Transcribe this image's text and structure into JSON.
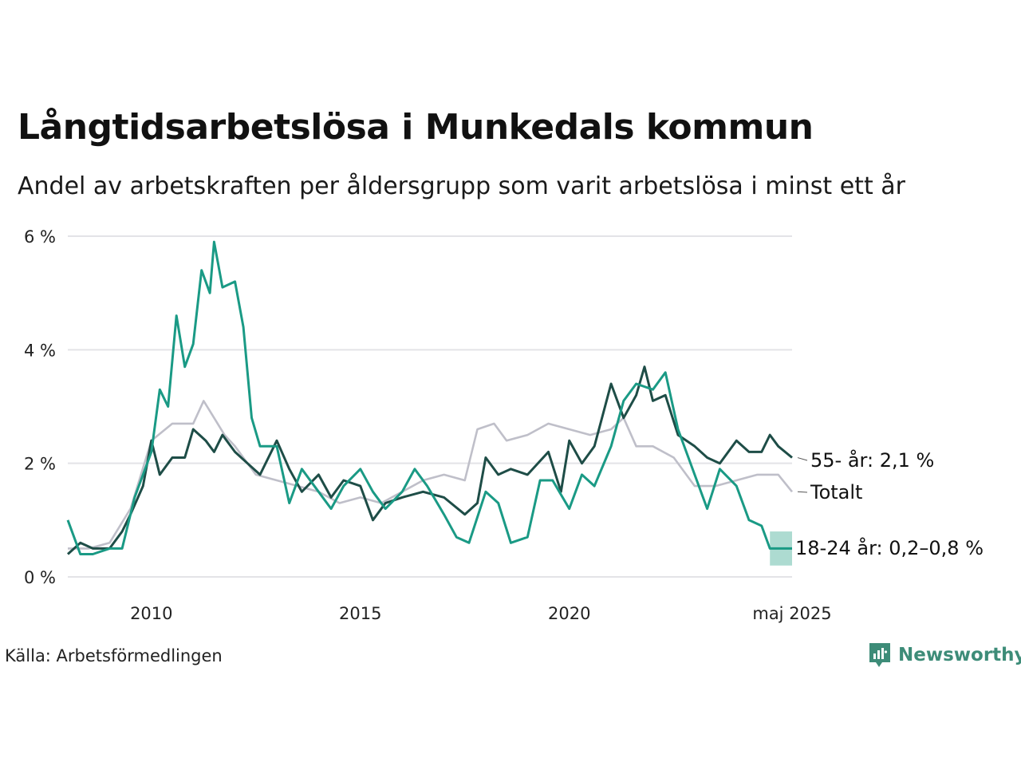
{
  "title": "Långtidsarbetslösa i Munkedals kommun",
  "subtitle": "Andel av arbetskraften per åldersgrupp som varit arbetslösa i minst ett år",
  "source": "Källa: Arbetsförmedlingen",
  "brand": "Newsworthy",
  "colors": {
    "youth": "#1a9a85",
    "older": "#1e4d47",
    "total": "#bfbfc9",
    "band": "#a9d9cf",
    "grid": "#e3e3e7",
    "brand": "#3d8c78"
  },
  "chart_data": {
    "type": "line",
    "title": "Långtidsarbetslösa i Munkedals kommun",
    "ylim": [
      0,
      6
    ],
    "yticks": [
      0,
      2,
      4,
      6
    ],
    "ytick_labels": [
      "0 %",
      "2 %",
      "4 %",
      "6 %"
    ],
    "xlim": [
      2008.0,
      2025.33
    ],
    "xticks": [
      2010,
      2015,
      2020,
      2025.33
    ],
    "xtick_labels": [
      "2010",
      "2015",
      "2020",
      "maj 2025"
    ],
    "grid": "horizontal",
    "legend": "direct labels at right end of lines",
    "series": [
      {
        "name": "Totalt",
        "key": "total",
        "end_label": "Totalt",
        "points": [
          [
            2008.0,
            0.5
          ],
          [
            2008.5,
            0.5
          ],
          [
            2009.0,
            0.6
          ],
          [
            2009.5,
            1.2
          ],
          [
            2010.0,
            2.4
          ],
          [
            2010.5,
            2.7
          ],
          [
            2011.0,
            2.7
          ],
          [
            2011.25,
            3.1
          ],
          [
            2011.5,
            2.8
          ],
          [
            2011.75,
            2.5
          ],
          [
            2012.0,
            2.3
          ],
          [
            2012.5,
            1.8
          ],
          [
            2013.0,
            1.7
          ],
          [
            2013.5,
            1.6
          ],
          [
            2014.0,
            1.5
          ],
          [
            2014.5,
            1.3
          ],
          [
            2015.0,
            1.4
          ],
          [
            2015.5,
            1.3
          ],
          [
            2016.0,
            1.5
          ],
          [
            2016.5,
            1.7
          ],
          [
            2017.0,
            1.8
          ],
          [
            2017.5,
            1.7
          ],
          [
            2017.8,
            2.6
          ],
          [
            2018.2,
            2.7
          ],
          [
            2018.5,
            2.4
          ],
          [
            2019.0,
            2.5
          ],
          [
            2019.5,
            2.7
          ],
          [
            2020.0,
            2.6
          ],
          [
            2020.5,
            2.5
          ],
          [
            2021.0,
            2.6
          ],
          [
            2021.3,
            2.8
          ],
          [
            2021.6,
            2.3
          ],
          [
            2022.0,
            2.3
          ],
          [
            2022.5,
            2.1
          ],
          [
            2023.0,
            1.6
          ],
          [
            2023.5,
            1.6
          ],
          [
            2024.0,
            1.7
          ],
          [
            2024.5,
            1.8
          ],
          [
            2025.0,
            1.8
          ],
          [
            2025.33,
            1.5
          ]
        ]
      },
      {
        "name": "55- år",
        "key": "older",
        "end_label": "55- år: 2,1 %",
        "points": [
          [
            2008.0,
            0.4
          ],
          [
            2008.3,
            0.6
          ],
          [
            2008.6,
            0.5
          ],
          [
            2009.0,
            0.5
          ],
          [
            2009.3,
            0.8
          ],
          [
            2009.5,
            1.1
          ],
          [
            2009.8,
            1.6
          ],
          [
            2010.0,
            2.4
          ],
          [
            2010.2,
            1.8
          ],
          [
            2010.5,
            2.1
          ],
          [
            2010.8,
            2.1
          ],
          [
            2011.0,
            2.6
          ],
          [
            2011.3,
            2.4
          ],
          [
            2011.5,
            2.2
          ],
          [
            2011.7,
            2.5
          ],
          [
            2012.0,
            2.2
          ],
          [
            2012.3,
            2.0
          ],
          [
            2012.6,
            1.8
          ],
          [
            2013.0,
            2.4
          ],
          [
            2013.3,
            1.9
          ],
          [
            2013.6,
            1.5
          ],
          [
            2014.0,
            1.8
          ],
          [
            2014.3,
            1.4
          ],
          [
            2014.6,
            1.7
          ],
          [
            2015.0,
            1.6
          ],
          [
            2015.3,
            1.0
          ],
          [
            2015.6,
            1.3
          ],
          [
            2016.0,
            1.4
          ],
          [
            2016.5,
            1.5
          ],
          [
            2017.0,
            1.4
          ],
          [
            2017.5,
            1.1
          ],
          [
            2017.8,
            1.3
          ],
          [
            2018.0,
            2.1
          ],
          [
            2018.3,
            1.8
          ],
          [
            2018.6,
            1.9
          ],
          [
            2019.0,
            1.8
          ],
          [
            2019.5,
            2.2
          ],
          [
            2019.8,
            1.5
          ],
          [
            2020.0,
            2.4
          ],
          [
            2020.3,
            2.0
          ],
          [
            2020.6,
            2.3
          ],
          [
            2021.0,
            3.4
          ],
          [
            2021.3,
            2.8
          ],
          [
            2021.6,
            3.2
          ],
          [
            2021.8,
            3.7
          ],
          [
            2022.0,
            3.1
          ],
          [
            2022.3,
            3.2
          ],
          [
            2022.6,
            2.5
          ],
          [
            2023.0,
            2.3
          ],
          [
            2023.3,
            2.1
          ],
          [
            2023.6,
            2.0
          ],
          [
            2024.0,
            2.4
          ],
          [
            2024.3,
            2.2
          ],
          [
            2024.6,
            2.2
          ],
          [
            2024.8,
            2.5
          ],
          [
            2025.0,
            2.3
          ],
          [
            2025.33,
            2.1
          ]
        ]
      },
      {
        "name": "18-24 år",
        "key": "youth",
        "end_label": "18-24 år: 0,2–0,8 %",
        "band_end": [
          0.2,
          0.8
        ],
        "points": [
          [
            2008.0,
            1.0
          ],
          [
            2008.3,
            0.4
          ],
          [
            2008.6,
            0.4
          ],
          [
            2009.0,
            0.5
          ],
          [
            2009.3,
            0.5
          ],
          [
            2009.6,
            1.4
          ],
          [
            2010.0,
            2.2
          ],
          [
            2010.2,
            3.3
          ],
          [
            2010.4,
            3.0
          ],
          [
            2010.6,
            4.6
          ],
          [
            2010.8,
            3.7
          ],
          [
            2011.0,
            4.1
          ],
          [
            2011.2,
            5.4
          ],
          [
            2011.4,
            5.0
          ],
          [
            2011.5,
            5.9
          ],
          [
            2011.7,
            5.1
          ],
          [
            2012.0,
            5.2
          ],
          [
            2012.2,
            4.4
          ],
          [
            2012.4,
            2.8
          ],
          [
            2012.6,
            2.3
          ],
          [
            2013.0,
            2.3
          ],
          [
            2013.3,
            1.3
          ],
          [
            2013.6,
            1.9
          ],
          [
            2014.0,
            1.5
          ],
          [
            2014.3,
            1.2
          ],
          [
            2014.6,
            1.6
          ],
          [
            2015.0,
            1.9
          ],
          [
            2015.3,
            1.5
          ],
          [
            2015.6,
            1.2
          ],
          [
            2016.0,
            1.5
          ],
          [
            2016.3,
            1.9
          ],
          [
            2016.6,
            1.6
          ],
          [
            2017.0,
            1.1
          ],
          [
            2017.3,
            0.7
          ],
          [
            2017.6,
            0.6
          ],
          [
            2018.0,
            1.5
          ],
          [
            2018.3,
            1.3
          ],
          [
            2018.6,
            0.6
          ],
          [
            2019.0,
            0.7
          ],
          [
            2019.3,
            1.7
          ],
          [
            2019.6,
            1.7
          ],
          [
            2020.0,
            1.2
          ],
          [
            2020.3,
            1.8
          ],
          [
            2020.6,
            1.6
          ],
          [
            2021.0,
            2.3
          ],
          [
            2021.3,
            3.1
          ],
          [
            2021.6,
            3.4
          ],
          [
            2022.0,
            3.3
          ],
          [
            2022.3,
            3.6
          ],
          [
            2022.6,
            2.6
          ],
          [
            2023.0,
            1.8
          ],
          [
            2023.3,
            1.2
          ],
          [
            2023.6,
            1.9
          ],
          [
            2024.0,
            1.6
          ],
          [
            2024.3,
            1.0
          ],
          [
            2024.6,
            0.9
          ],
          [
            2024.8,
            0.5
          ],
          [
            2025.33,
            0.5
          ]
        ]
      }
    ]
  }
}
